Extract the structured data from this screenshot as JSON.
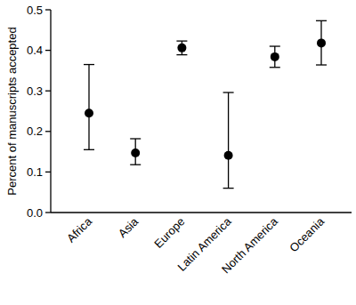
{
  "chart_data": {
    "type": "dot",
    "y_label": "Percent of manuscripts accepted",
    "categories": [
      "Africa",
      "Asia",
      "Europe",
      "Latin America",
      "North America",
      "Oceania"
    ],
    "values": [
      0.245,
      0.147,
      0.406,
      0.141,
      0.384,
      0.418
    ],
    "ci_low": [
      0.155,
      0.118,
      0.389,
      0.06,
      0.358,
      0.364
    ],
    "ci_high": [
      0.365,
      0.182,
      0.423,
      0.296,
      0.41,
      0.473
    ],
    "color": "#000000",
    "ylim": [
      0,
      0.5
    ],
    "yticks": [
      {
        "value": 0,
        "label": "0.0"
      },
      0.1,
      0.2,
      0.3,
      0.4,
      0.5
    ],
    "grid": false
  }
}
